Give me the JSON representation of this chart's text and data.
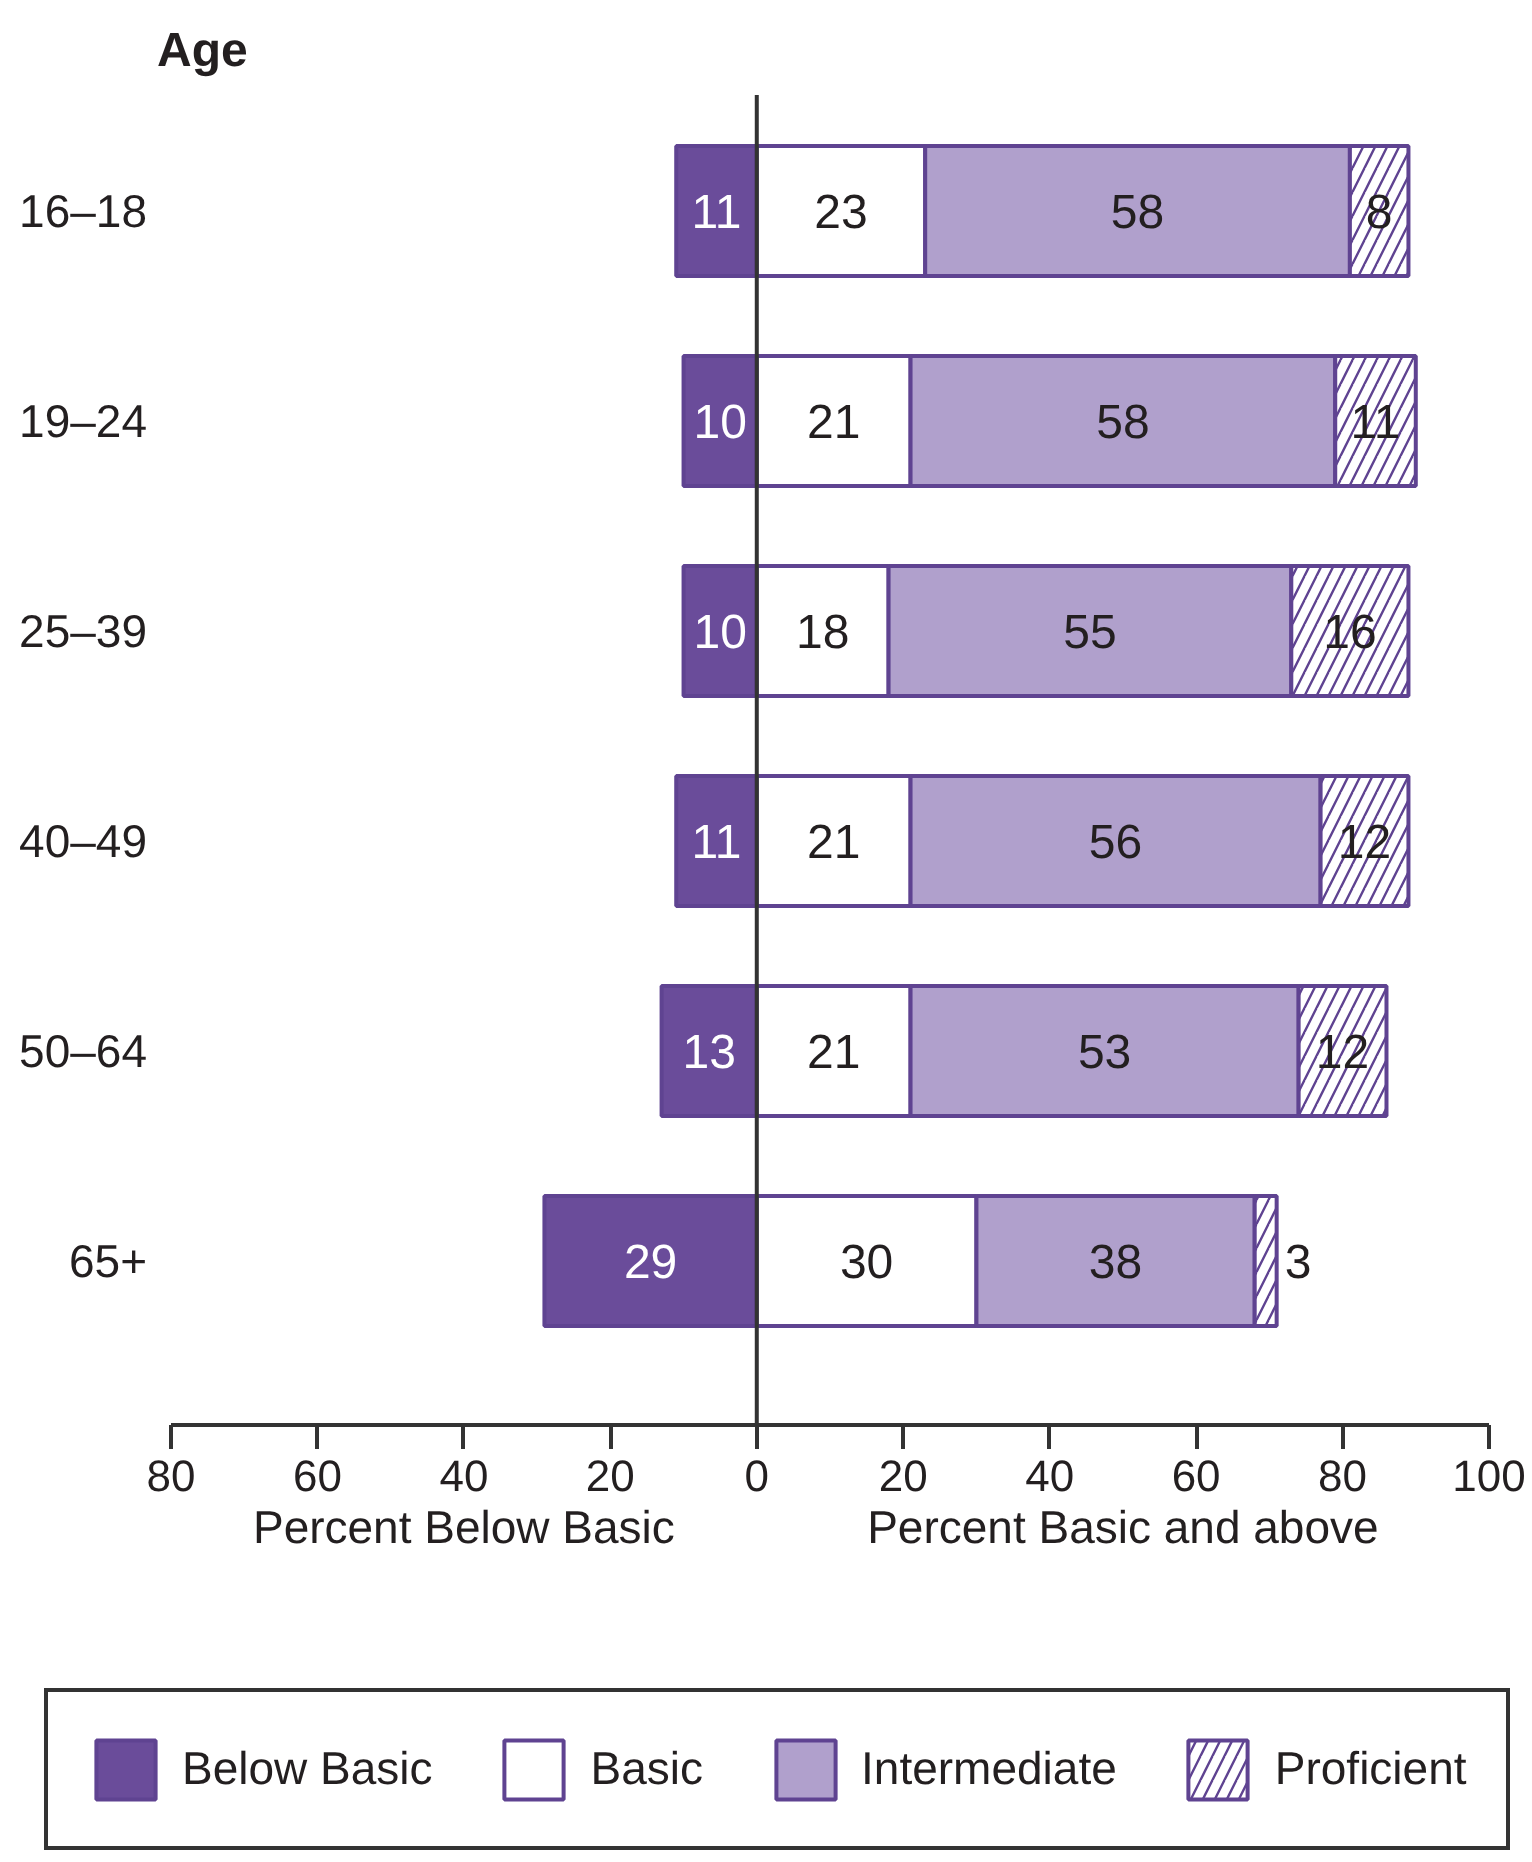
{
  "chart_data": {
    "type": "bar",
    "orientation": "horizontal",
    "stacked": true,
    "ylabel": "Age",
    "categories": [
      "16–18",
      "19–24",
      "25–39",
      "40–49",
      "50–64",
      "65+"
    ],
    "series": [
      {
        "name": "Below Basic",
        "color": "#6a4c9a",
        "values": [
          11,
          10,
          10,
          11,
          13,
          29
        ],
        "base": [
          -11,
          -10,
          -10,
          -11,
          -13,
          -29
        ]
      },
      {
        "name": "Basic",
        "color": "#ffffff",
        "values": [
          23,
          21,
          18,
          21,
          21,
          30
        ]
      },
      {
        "name": "Intermediate",
        "color": "#b0a0cc",
        "values": [
          58,
          58,
          55,
          56,
          53,
          38
        ]
      },
      {
        "name": "Proficient",
        "color": "#ffffff",
        "values": [
          8,
          11,
          16,
          12,
          12,
          3
        ]
      }
    ],
    "data_labels": true,
    "xlim": [
      -80,
      100
    ],
    "xticks": [
      {
        "value": -80,
        "label": "80"
      },
      {
        "value": -60,
        "label": "60"
      },
      {
        "value": -40,
        "label": "40"
      },
      {
        "value": -20,
        "label": "20"
      },
      0,
      20,
      40,
      60,
      80,
      100
    ],
    "annotations": [
      "Percent Below Basic",
      "Percent Basic and above"
    ],
    "ref_lines": [
      {
        "axis": "x",
        "value": 0
      }
    ],
    "legend": "bottom"
  }
}
